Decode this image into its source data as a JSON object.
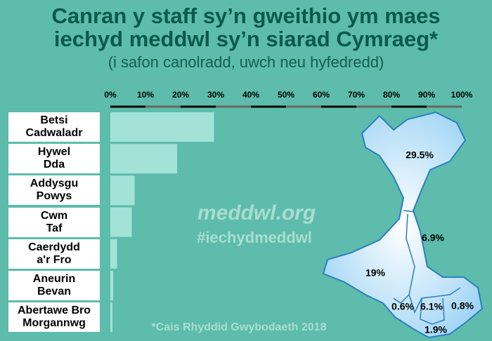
{
  "chart_data": {
    "type": "bar",
    "title": "Canran y staff sy’n gweithio ym maes\niechyd meddwl sy’n siarad Cymraeg*",
    "subtitle": "(i safon canolradd, uwch neu hyfedredd)",
    "categories": [
      "Betsi\nCadwaladr",
      "Hywel\nDda",
      "Addysgu\nPowys",
      "Cwm\nTaf",
      "Caerdydd\na'r Fro",
      "Aneurin\nBevan",
      "Abertawe Bro\nMorgannwg"
    ],
    "values": [
      29.5,
      19,
      6.9,
      6.1,
      1.9,
      0.8,
      0.6
    ],
    "value_labels": [
      "29.5%",
      "19%",
      "6.9%",
      "6.1%",
      "1.9%",
      "0.8%",
      "0.6%"
    ],
    "color": "#a3e3d7",
    "xlim": [
      0,
      100
    ],
    "xticks": [
      {
        "value": 0,
        "label": "0%"
      },
      {
        "value": 10,
        "label": "10%"
      },
      {
        "value": 20,
        "label": "20%"
      },
      {
        "value": 30,
        "label": "30%"
      },
      {
        "value": 40,
        "label": "40%"
      },
      {
        "value": 50,
        "label": "50%"
      },
      {
        "value": 60,
        "label": "60%"
      },
      {
        "value": 70,
        "label": "70%"
      },
      {
        "value": 80,
        "label": "80%"
      },
      {
        "value": 90,
        "label": "90%"
      },
      {
        "value": 100,
        "label": "100%"
      }
    ],
    "annotations": [
      "meddwl.org",
      "#iechydmeddwl",
      "*Cais Rhyddid Gwybodaeth 2018"
    ]
  }
}
